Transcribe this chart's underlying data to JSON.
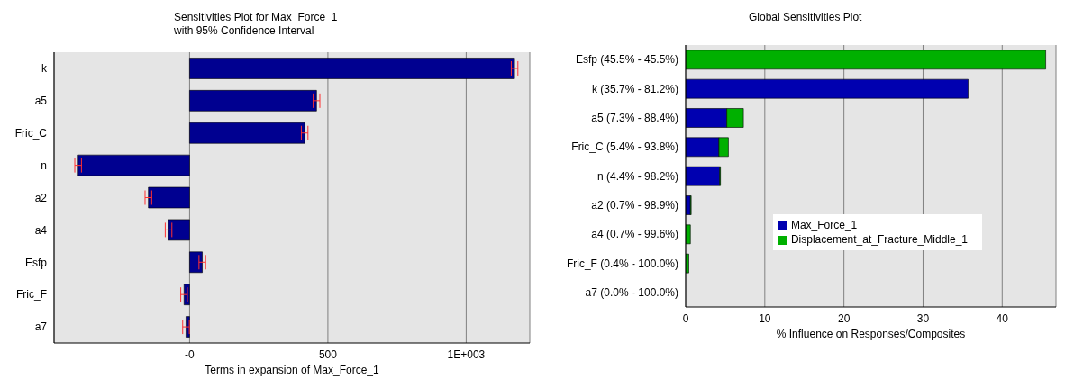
{
  "chart_data": [
    {
      "type": "bar",
      "orientation": "horizontal",
      "title": "Sensitivities Plot for Max_Force_1\nwith 95% Confidence Interval",
      "xlabel": "Terms in expansion of Max_Force_1",
      "categories": [
        "k",
        "a5",
        "Fric_C",
        "n",
        "a2",
        "a4",
        "Esfp",
        "Fric_F",
        "a7"
      ],
      "values": [
        1175,
        459,
        416,
        -403,
        -149,
        -76,
        46,
        -20,
        -13
      ],
      "errors": [
        12,
        12,
        12,
        12,
        12,
        12,
        12,
        12,
        12
      ],
      "color": "#000090",
      "xlim": [
        -490,
        1230
      ],
      "xticks": [
        {
          "value": 0,
          "label": "-0"
        },
        500,
        {
          "value": 1000,
          "label": "1E+003"
        }
      ],
      "grid": "x"
    },
    {
      "type": "bar",
      "orientation": "horizontal",
      "stacked": true,
      "title": "Global Sensitivities Plot",
      "xlabel": "% Influence on Responses/Composites",
      "categories": [
        "Esfp (45.5% - 45.5%)",
        "k (35.7% - 81.2%)",
        "a5 (7.3% - 88.4%)",
        "Fric_C (5.4% - 93.8%)",
        "n (4.4% - 98.2%)",
        "a2 (0.7% - 98.9%)",
        "a4 (0.7% - 99.6%)",
        "Fric_F (0.4% - 100.0%)",
        "a7 (0.0% - 100.0%)"
      ],
      "series": [
        {
          "name": "Max_Force_1",
          "color": "#0000b0",
          "values": [
            0,
            35.7,
            5.2,
            4.2,
            4.3,
            0.6,
            null,
            0,
            0
          ]
        },
        {
          "name": "Displacement_at_Fracture_Middle_1",
          "color": "#00b000",
          "values": [
            45.5,
            0,
            2.1,
            1.2,
            0.1,
            0.1,
            0.6,
            0.4,
            0
          ]
        }
      ],
      "xlim": [
        0,
        46.8
      ],
      "xticks": [
        0,
        10,
        20,
        30,
        40
      ],
      "grid": "x",
      "legend": "right"
    }
  ]
}
